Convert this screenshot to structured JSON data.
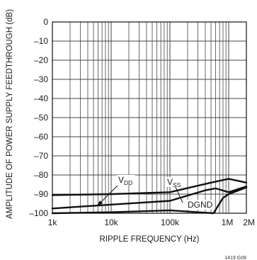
{
  "chart_data": {
    "type": "line",
    "xscale": "log",
    "xlim": [
      1000,
      2000000
    ],
    "ylim": [
      -100,
      0
    ],
    "grid": true,
    "xlabel": "RIPPLE FREQUENCY (Hz)",
    "ylabel": "AMPLITUDE OF POWER SUPPLY FEEDTHROUGH (dB)",
    "yticks": [
      0,
      -10,
      -20,
      -30,
      -40,
      -50,
      -60,
      -70,
      -80,
      -90,
      -100
    ],
    "ytick_labels": [
      "0",
      "–10",
      "–20",
      "–30",
      "–40",
      "–50",
      "–60",
      "–70",
      "–80",
      "–90",
      "–100"
    ],
    "xticks": [
      1000,
      10000,
      100000,
      1000000,
      2000000
    ],
    "xtick_labels": [
      "1k",
      "10k",
      "100k",
      "1M",
      "2M"
    ],
    "series": [
      {
        "name": "VDD",
        "x": [
          1000,
          10000,
          100000,
          500000,
          1000000,
          2000000
        ],
        "y": [
          -90.5,
          -90,
          -89,
          -84,
          -82,
          -84
        ]
      },
      {
        "name": "VSS",
        "x": [
          1000,
          10000,
          100000,
          400000,
          600000,
          1000000,
          2000000
        ],
        "y": [
          -97.5,
          -95.5,
          -93.5,
          -88,
          -87,
          -89,
          -86
        ]
      },
      {
        "name": "DGND",
        "x": [
          1000,
          10000,
          100000,
          300000,
          550000,
          800000,
          1000000,
          2000000
        ],
        "y": [
          -100,
          -99.5,
          -98.5,
          -99.5,
          -100,
          -92,
          -90,
          -86.5
        ]
      }
    ],
    "annotations": [
      {
        "text": "V",
        "sub": "DD",
        "series": "VDD"
      },
      {
        "text": "V",
        "sub": "SS",
        "series": "VSS"
      },
      {
        "text": "DGND",
        "sub": "",
        "series": "DGND"
      }
    ],
    "figure_id": "1419 G08"
  }
}
